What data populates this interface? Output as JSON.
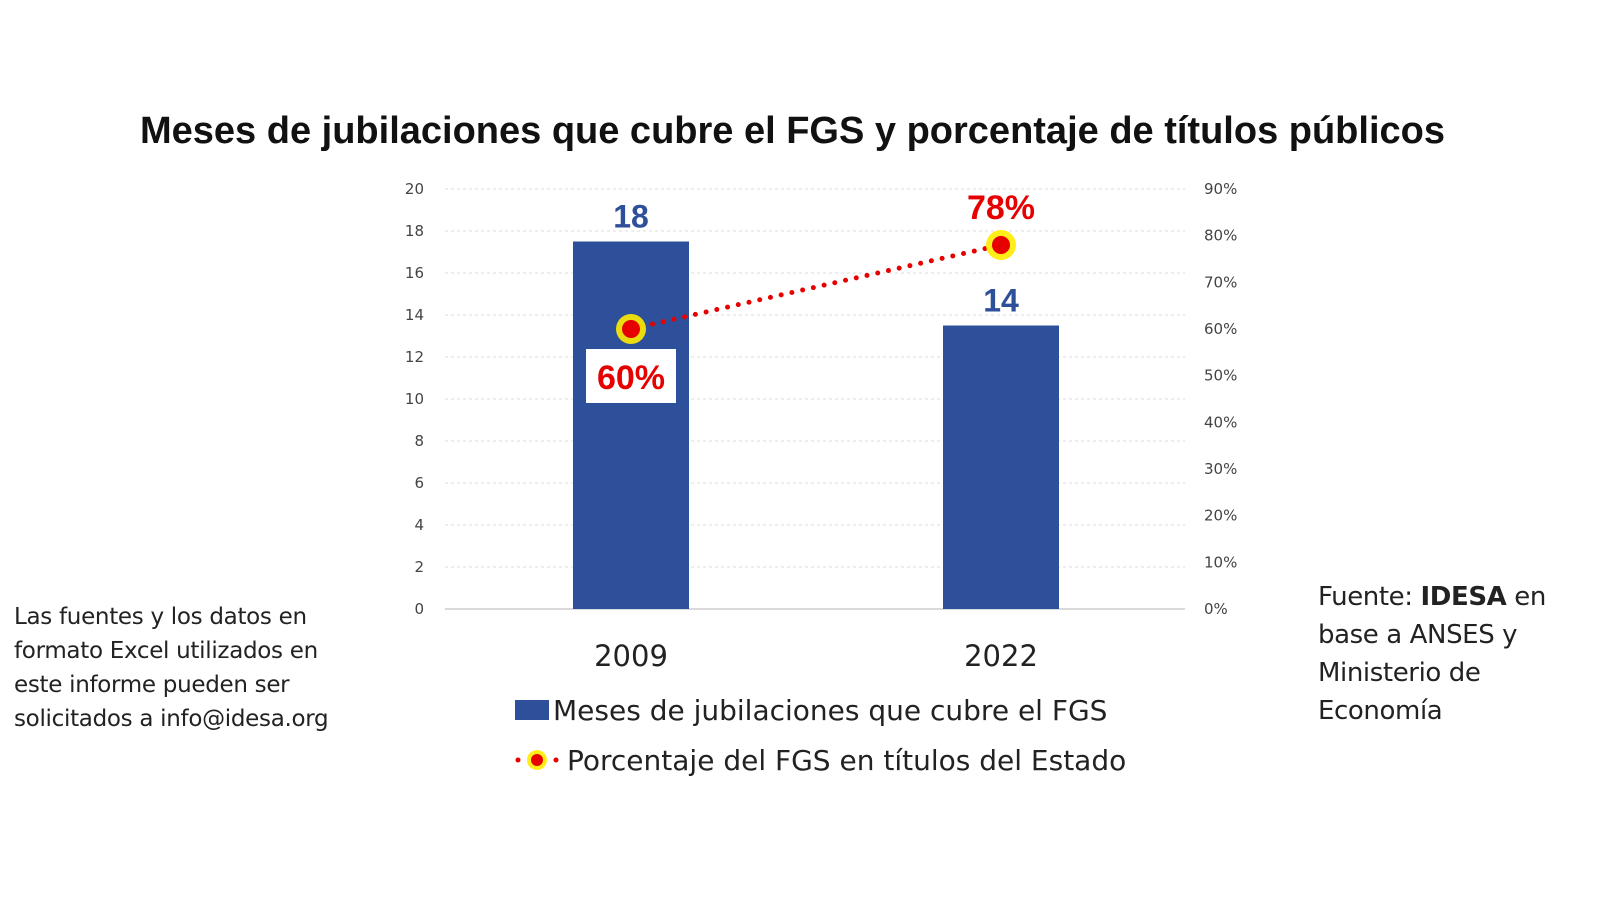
{
  "chart_data": {
    "type": "bar",
    "title": "Meses de jubilaciones que cubre el FGS y porcentaje de títulos públicos",
    "categories": [
      "2009",
      "2022"
    ],
    "series": [
      {
        "name": "Meses de jubilaciones que cubre el FGS",
        "type": "bar",
        "axis": "left",
        "values": [
          17.5,
          13.5
        ],
        "data_labels": [
          "18",
          "14"
        ],
        "color": "#2e4f9a"
      },
      {
        "name": "Porcentaje del FGS en títulos del Estado",
        "type": "line",
        "axis": "right",
        "values": [
          60,
          78
        ],
        "data_labels": [
          "60%",
          "78%"
        ],
        "color": "#e60000",
        "marker_halo": "#ffec00",
        "line_style": "dotted"
      }
    ],
    "left_axis": {
      "min": 0,
      "max": 20,
      "step": 2,
      "ticks": [
        "0",
        "2",
        "4",
        "6",
        "8",
        "10",
        "12",
        "14",
        "16",
        "18",
        "20"
      ]
    },
    "right_axis": {
      "min": 0,
      "max": 90,
      "step": 10,
      "ticks": [
        "0%",
        "10%",
        "20%",
        "30%",
        "40%",
        "50%",
        "60%",
        "70%",
        "80%",
        "90%"
      ]
    },
    "grid": true,
    "legend_position": "bottom",
    "xlabel": "",
    "ylabel": ""
  },
  "legend": {
    "bar_label": "Meses de jubilaciones que cubre el FGS",
    "line_label": "Porcentaje del FGS en títulos del Estado"
  },
  "footnote": {
    "lines": [
      "Las fuentes y los datos en",
      "formato Excel utilizados en",
      "este informe pueden ser",
      "solicitados a info@idesa.org"
    ]
  },
  "source": {
    "prefix": "Fuente: ",
    "bold": "IDESA",
    "rest_line1": " en",
    "line2": "base a ANSES y",
    "line3": "Ministerio de",
    "line4": "Economía"
  }
}
